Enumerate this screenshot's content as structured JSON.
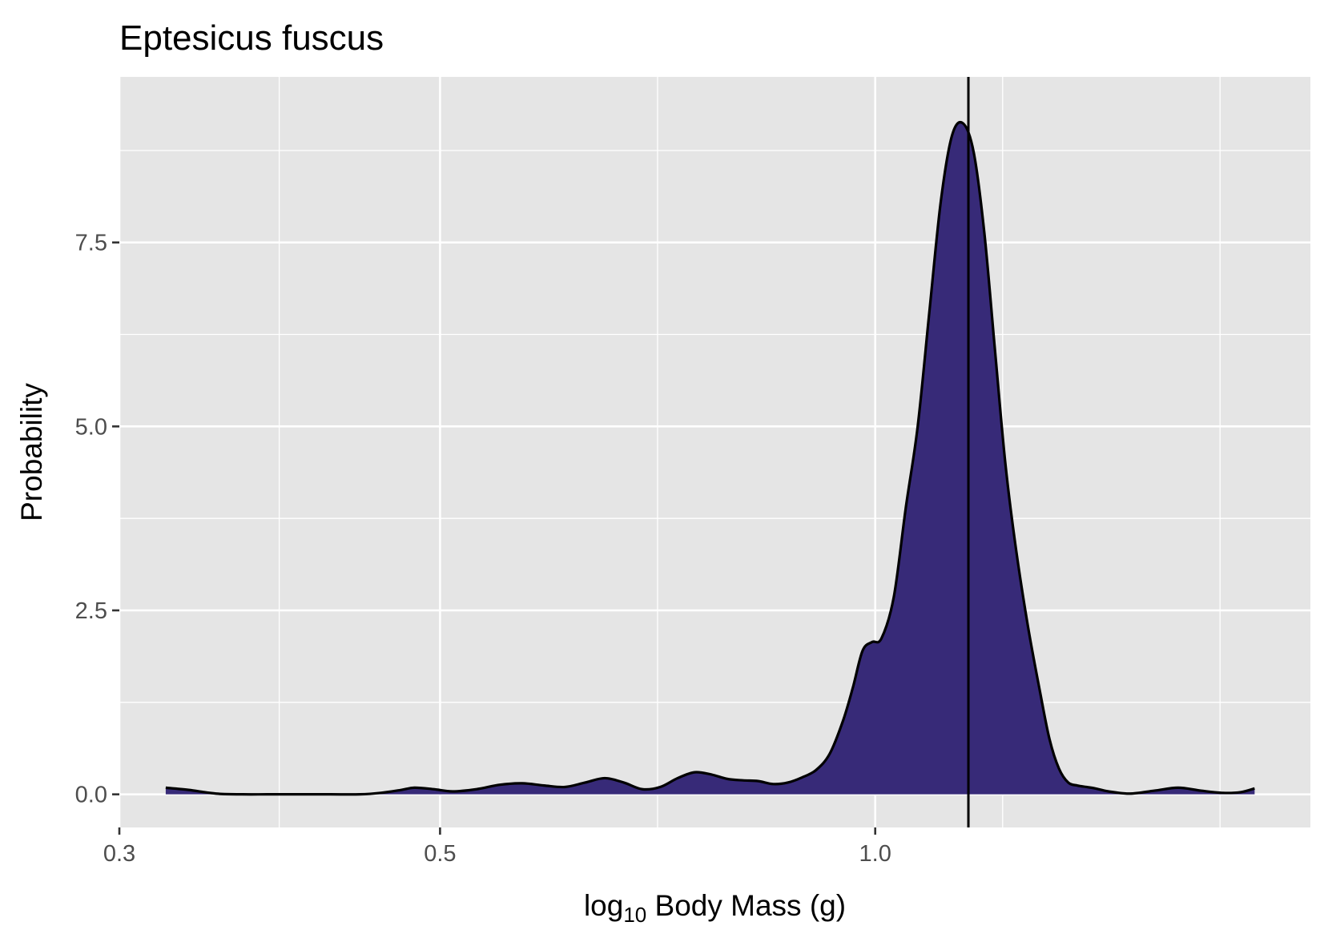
{
  "chart_data": {
    "type": "area",
    "title": "Eptesicus fuscus",
    "xlabel_parts": {
      "prefix": "log",
      "subscript": "10",
      "suffix": " Body Mass (g)"
    },
    "ylabel": "Probability",
    "x_scale": "log10",
    "xlim": [
      0.3,
      2.0
    ],
    "ylim": [
      -0.45,
      9.75
    ],
    "x_ticks": [
      {
        "value": 0.3,
        "label": "0.3"
      },
      {
        "value": 0.5,
        "label": "0.5"
      },
      {
        "value": 1.0,
        "label": "1.0"
      }
    ],
    "y_ticks": [
      {
        "value": 0.0,
        "label": "0.0"
      },
      {
        "value": 2.5,
        "label": "2.5"
      },
      {
        "value": 5.0,
        "label": "5.0"
      },
      {
        "value": 7.5,
        "label": "7.5"
      }
    ],
    "x_minor_gridlines": [
      0.387,
      0.707,
      1.225,
      1.732
    ],
    "y_minor_gridlines": [
      1.25,
      3.75,
      6.25,
      8.75
    ],
    "grid": true,
    "vline_x": 1.16,
    "colors": {
      "panel": "#e5e5e5",
      "grid": "#ffffff",
      "fill": "#372a78",
      "outline": "#000000",
      "vline": "#000000"
    },
    "density": {
      "x": [
        0.323,
        0.335,
        0.35,
        0.365,
        0.38,
        0.4,
        0.42,
        0.44,
        0.455,
        0.47,
        0.48,
        0.495,
        0.51,
        0.53,
        0.55,
        0.57,
        0.59,
        0.61,
        0.63,
        0.65,
        0.67,
        0.69,
        0.71,
        0.73,
        0.75,
        0.77,
        0.79,
        0.81,
        0.83,
        0.85,
        0.87,
        0.89,
        0.91,
        0.93,
        0.95,
        0.965,
        0.98,
        0.995,
        1.01,
        1.03,
        1.05,
        1.07,
        1.09,
        1.11,
        1.13,
        1.15,
        1.17,
        1.19,
        1.21,
        1.23,
        1.25,
        1.275,
        1.3,
        1.32,
        1.34,
        1.36,
        1.38,
        1.4,
        1.42,
        1.45,
        1.5,
        1.56,
        1.62,
        1.68,
        1.74,
        1.79,
        1.83
      ],
      "y": [
        0.09,
        0.06,
        0.01,
        0.0,
        0.0,
        0.0,
        0.0,
        0.0,
        0.02,
        0.06,
        0.09,
        0.07,
        0.04,
        0.07,
        0.13,
        0.15,
        0.12,
        0.1,
        0.16,
        0.22,
        0.16,
        0.07,
        0.1,
        0.22,
        0.3,
        0.27,
        0.21,
        0.19,
        0.18,
        0.14,
        0.16,
        0.23,
        0.33,
        0.55,
        1.0,
        1.45,
        1.95,
        2.07,
        2.12,
        2.68,
        3.9,
        5.0,
        6.55,
        8.05,
        8.95,
        9.12,
        8.72,
        7.62,
        6.05,
        4.52,
        3.4,
        2.3,
        1.4,
        0.75,
        0.35,
        0.16,
        0.12,
        0.1,
        0.08,
        0.04,
        0.01,
        0.05,
        0.09,
        0.05,
        0.02,
        0.03,
        0.08
      ]
    }
  }
}
